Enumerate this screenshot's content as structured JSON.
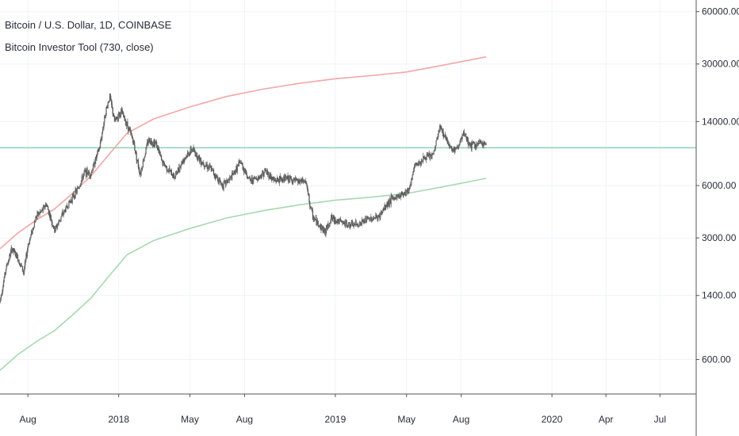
{
  "header": {
    "symbol_line": "Bitcoin / U.S. Dollar, 1D, COINBASE",
    "indicator_line": "Bitcoin Investor Tool (730, close)"
  },
  "colors": {
    "candle": "#5a5a5a",
    "upper_band": "#f4a6a6",
    "lower_band": "#a8d8b0",
    "horizontal_line": "#8fd0b0",
    "grid": "#f0f3fa",
    "axis": "#555555"
  },
  "chart_data": {
    "type": "line",
    "title": "Bitcoin / U.S. Dollar, 1D, COINBASE",
    "scale": "log",
    "ylim": [
      380,
      70000
    ],
    "xlim": [
      "2017-06-15",
      "2020-08-31"
    ],
    "y_ticks": [
      "60000.00",
      "30000.00",
      "14000.00",
      "6000.00",
      "3000.00",
      "1400.00",
      "600.00"
    ],
    "x_ticks": [
      {
        "label": "Aug",
        "date": "2017-08-01"
      },
      {
        "label": "2018",
        "date": "2018-01-01"
      },
      {
        "label": "May",
        "date": "2018-05-01"
      },
      {
        "label": "Aug",
        "date": "2018-08-01"
      },
      {
        "label": "2019",
        "date": "2019-01-01"
      },
      {
        "label": "May",
        "date": "2019-05-01"
      },
      {
        "label": "Aug",
        "date": "2019-08-01"
      },
      {
        "label": "2020",
        "date": "2020-01-01"
      },
      {
        "label": "Apr",
        "date": "2020-04-01"
      },
      {
        "label": "Jul",
        "date": "2020-07-01"
      }
    ],
    "horizontal_level": 9900,
    "series": [
      {
        "name": "Bitcoin / U.S. Dollar",
        "kind": "price",
        "points": [
          [
            "2017-06-15",
            1300
          ],
          [
            "2017-06-25",
            2000
          ],
          [
            "2017-07-05",
            2600
          ],
          [
            "2017-07-15",
            2300
          ],
          [
            "2017-07-25",
            1900
          ],
          [
            "2017-08-01",
            2700
          ],
          [
            "2017-08-15",
            4000
          ],
          [
            "2017-08-25",
            4300
          ],
          [
            "2017-09-01",
            4700
          ],
          [
            "2017-09-15",
            3300
          ],
          [
            "2017-09-25",
            3900
          ],
          [
            "2017-10-10",
            4800
          ],
          [
            "2017-10-25",
            5800
          ],
          [
            "2017-11-05",
            7200
          ],
          [
            "2017-11-15",
            7000
          ],
          [
            "2017-11-30",
            10000
          ],
          [
            "2017-12-10",
            16000
          ],
          [
            "2017-12-17",
            19500
          ],
          [
            "2017-12-25",
            14000
          ],
          [
            "2018-01-05",
            16000
          ],
          [
            "2018-01-15",
            13500
          ],
          [
            "2018-01-25",
            11000
          ],
          [
            "2018-02-06",
            7000
          ],
          [
            "2018-02-20",
            11000
          ],
          [
            "2018-03-05",
            10500
          ],
          [
            "2018-03-15",
            8200
          ],
          [
            "2018-04-05",
            6700
          ],
          [
            "2018-04-20",
            8500
          ],
          [
            "2018-05-05",
            9700
          ],
          [
            "2018-05-20",
            8300
          ],
          [
            "2018-06-05",
            7500
          ],
          [
            "2018-06-25",
            6000
          ],
          [
            "2018-07-10",
            6700
          ],
          [
            "2018-07-25",
            8200
          ],
          [
            "2018-08-10",
            6400
          ],
          [
            "2018-08-25",
            6700
          ],
          [
            "2018-09-05",
            7300
          ],
          [
            "2018-09-20",
            6400
          ],
          [
            "2018-10-10",
            6600
          ],
          [
            "2018-10-30",
            6300
          ],
          [
            "2018-11-12",
            6350
          ],
          [
            "2018-11-20",
            4500
          ],
          [
            "2018-11-25",
            3900
          ],
          [
            "2018-12-15",
            3250
          ],
          [
            "2018-12-25",
            3900
          ],
          [
            "2019-01-10",
            3700
          ],
          [
            "2019-01-25",
            3550
          ],
          [
            "2019-02-10",
            3600
          ],
          [
            "2019-02-25",
            3850
          ],
          [
            "2019-03-15",
            3950
          ],
          [
            "2019-04-02",
            4900
          ],
          [
            "2019-04-20",
            5300
          ],
          [
            "2019-05-05",
            5700
          ],
          [
            "2019-05-15",
            7800
          ],
          [
            "2019-05-30",
            8600
          ],
          [
            "2019-06-15",
            9000
          ],
          [
            "2019-06-26",
            13000
          ],
          [
            "2019-07-05",
            11500
          ],
          [
            "2019-07-17",
            9600
          ],
          [
            "2019-07-25",
            9800
          ],
          [
            "2019-08-06",
            11900
          ],
          [
            "2019-08-15",
            10300
          ],
          [
            "2019-08-25",
            10200
          ],
          [
            "2019-09-05",
            10600
          ],
          [
            "2019-09-12",
            10300
          ]
        ]
      },
      {
        "name": "upper band",
        "kind": "upper",
        "points": [
          [
            "2017-06-15",
            2600
          ],
          [
            "2017-07-15",
            3200
          ],
          [
            "2017-08-15",
            3800
          ],
          [
            "2017-09-15",
            4400
          ],
          [
            "2017-10-15",
            5400
          ],
          [
            "2017-11-15",
            6800
          ],
          [
            "2017-12-15",
            9000
          ],
          [
            "2018-01-15",
            12000
          ],
          [
            "2018-03-01",
            14500
          ],
          [
            "2018-05-01",
            17000
          ],
          [
            "2018-07-01",
            19500
          ],
          [
            "2018-09-01",
            21500
          ],
          [
            "2018-11-01",
            23200
          ],
          [
            "2019-01-01",
            24700
          ],
          [
            "2019-03-01",
            25700
          ],
          [
            "2019-05-01",
            27000
          ],
          [
            "2019-07-01",
            29500
          ],
          [
            "2019-09-12",
            33000
          ]
        ]
      },
      {
        "name": "lower band",
        "kind": "lower",
        "points": [
          [
            "2017-06-15",
            520
          ],
          [
            "2017-07-15",
            640
          ],
          [
            "2017-08-15",
            760
          ],
          [
            "2017-09-15",
            880
          ],
          [
            "2017-10-15",
            1080
          ],
          [
            "2017-11-15",
            1350
          ],
          [
            "2017-12-15",
            1800
          ],
          [
            "2018-01-15",
            2400
          ],
          [
            "2018-03-01",
            2900
          ],
          [
            "2018-05-01",
            3400
          ],
          [
            "2018-07-01",
            3900
          ],
          [
            "2018-09-01",
            4300
          ],
          [
            "2018-11-01",
            4650
          ],
          [
            "2019-01-01",
            4940
          ],
          [
            "2019-03-01",
            5140
          ],
          [
            "2019-05-01",
            5400
          ],
          [
            "2019-07-01",
            5900
          ],
          [
            "2019-09-12",
            6600
          ]
        ]
      }
    ]
  }
}
